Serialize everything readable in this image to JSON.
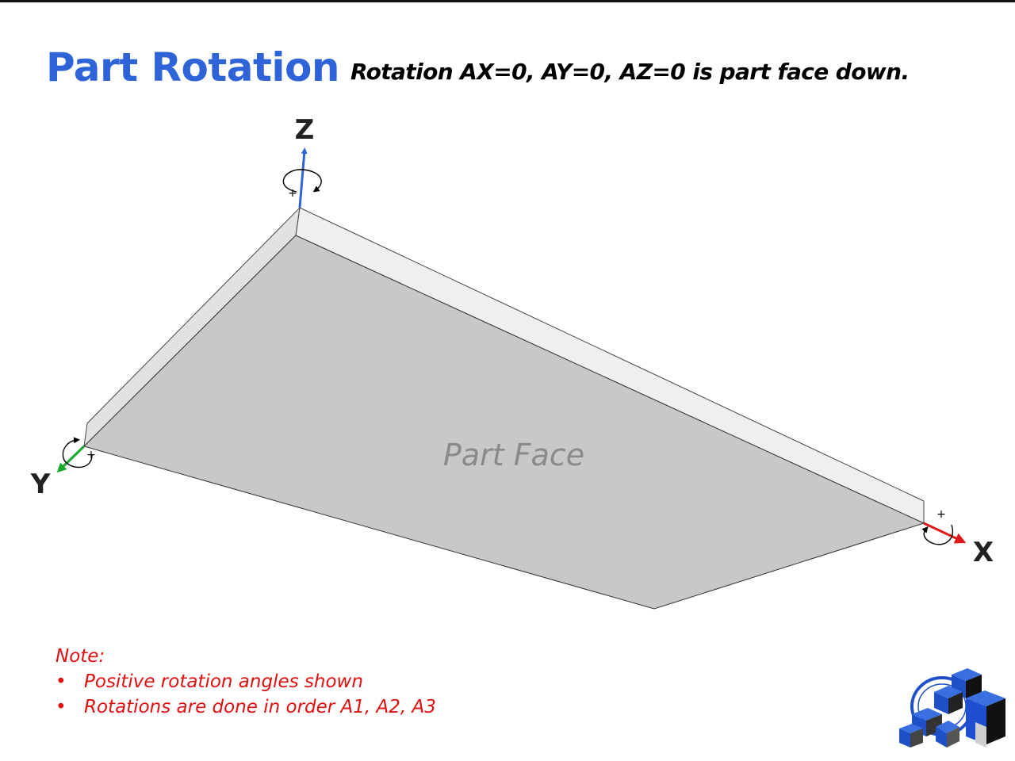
{
  "header": {
    "title": "Part Rotation",
    "subtitle": "Rotation AX=0, AY=0, AZ=0 is part face down."
  },
  "diagram": {
    "face_label": "Part Face",
    "axes": {
      "z": {
        "label": "Z",
        "color": "#2f63d8",
        "rotation_sign": "+"
      },
      "y": {
        "label": "Y",
        "color": "#18a830",
        "rotation_sign": "+"
      },
      "x": {
        "label": "X",
        "color": "#e01818",
        "rotation_sign": "+"
      }
    }
  },
  "note": {
    "heading": "Note:",
    "items": [
      {
        "bullet": "•",
        "text": "Positive rotation angles shown"
      },
      {
        "bullet": "•",
        "text": "Rotations are done in order A1, A2, A3"
      }
    ]
  },
  "colors": {
    "title": "#2f63d8",
    "note": "#e01010",
    "face": "#c8c8c8",
    "edge": "#efefef"
  },
  "logo": {
    "icon": "company-logo-icon"
  }
}
